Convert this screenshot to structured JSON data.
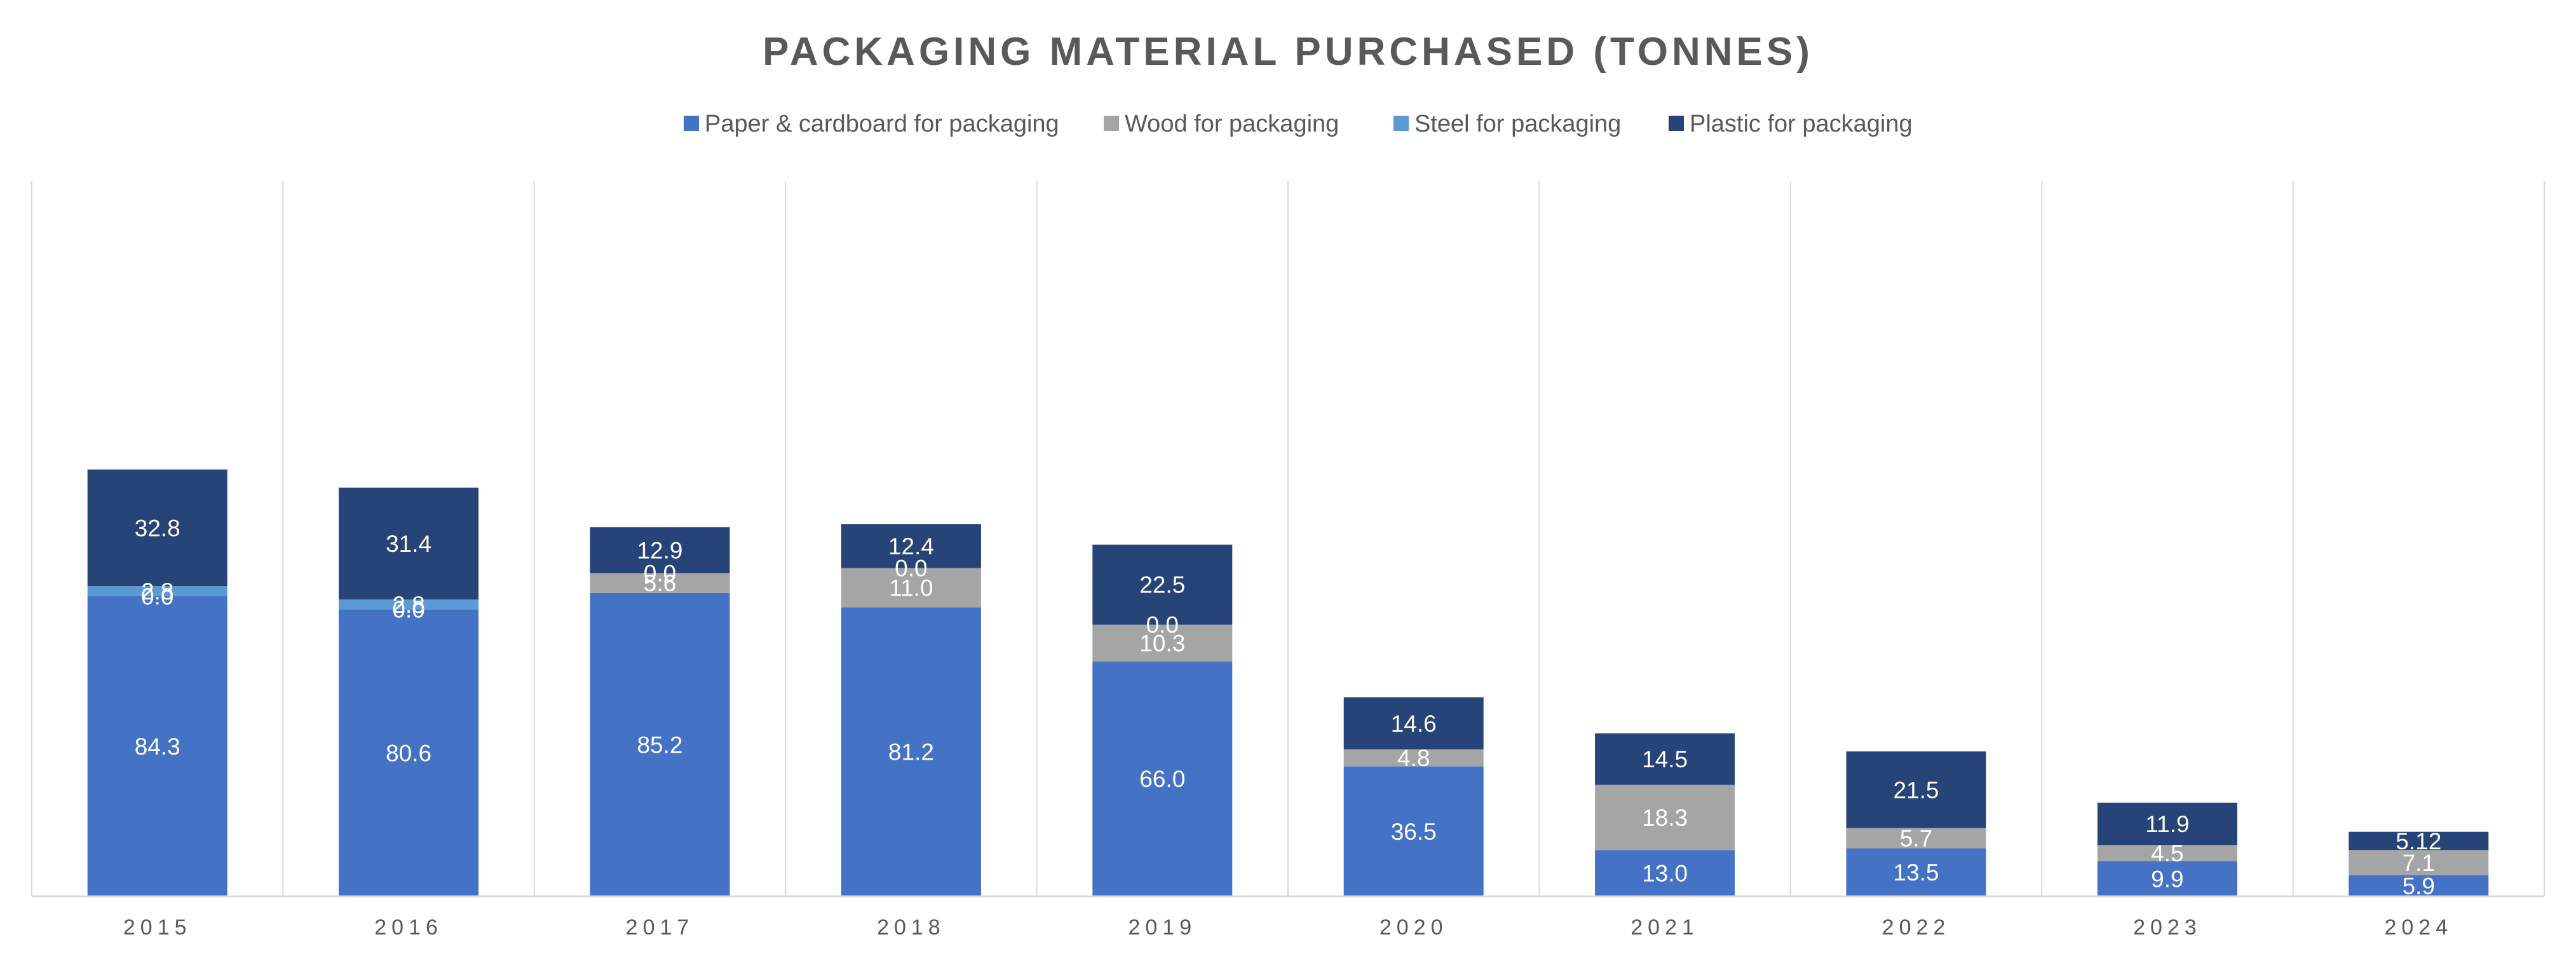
{
  "chart_data": {
    "type": "bar",
    "stacked": true,
    "title": "PACKAGING MATERIAL PURCHASED (TONNES)",
    "xlabel": "",
    "ylabel": "",
    "legend_position": "top",
    "gridlines": "vertical",
    "ylim": [
      0,
      150
    ],
    "categories": [
      "2015",
      "2016",
      "2017",
      "2018",
      "2019",
      "2020",
      "2021",
      "2022",
      "2023",
      "2024"
    ],
    "series": [
      {
        "name": "Paper & cardboard for packaging",
        "color": "#4472c4",
        "values": [
          84.3,
          80.6,
          85.2,
          81.2,
          66.0,
          36.5,
          13.0,
          13.5,
          9.9,
          5.9
        ],
        "labels": [
          "84.3",
          "80.6",
          "85.2",
          "81.2",
          "66.0",
          "36.5",
          "13.0",
          "13.5",
          "9.9",
          "5.9"
        ]
      },
      {
        "name": "Wood for packaging",
        "color": "#a5a5a5",
        "values": [
          0.0,
          0.0,
          5.6,
          11.0,
          10.3,
          4.8,
          18.3,
          5.7,
          4.5,
          7.1
        ],
        "labels": [
          "0.0",
          "0.0",
          "5.6",
          "11.0",
          "10.3",
          "4.8",
          "18.3",
          "5.7",
          "4.5",
          "7.1"
        ]
      },
      {
        "name": "Steel for packaging",
        "color": "#5b9bd5",
        "values": [
          2.8,
          2.8,
          0.0,
          0.0,
          0.0,
          null,
          null,
          null,
          null,
          null
        ],
        "labels": [
          "2.8",
          "2.8",
          "0.0",
          "0.0",
          "0.0",
          null,
          null,
          null,
          null,
          null
        ]
      },
      {
        "name": "Plastic for packaging",
        "color": "#264478",
        "values": [
          32.8,
          31.4,
          12.9,
          12.4,
          22.5,
          14.6,
          14.5,
          21.5,
          11.9,
          5.12
        ],
        "labels": [
          "32.8",
          "31.4",
          "12.9",
          "12.4",
          "22.5",
          "14.6",
          "14.5",
          "21.5",
          "11.9",
          "5.12"
        ]
      }
    ]
  }
}
